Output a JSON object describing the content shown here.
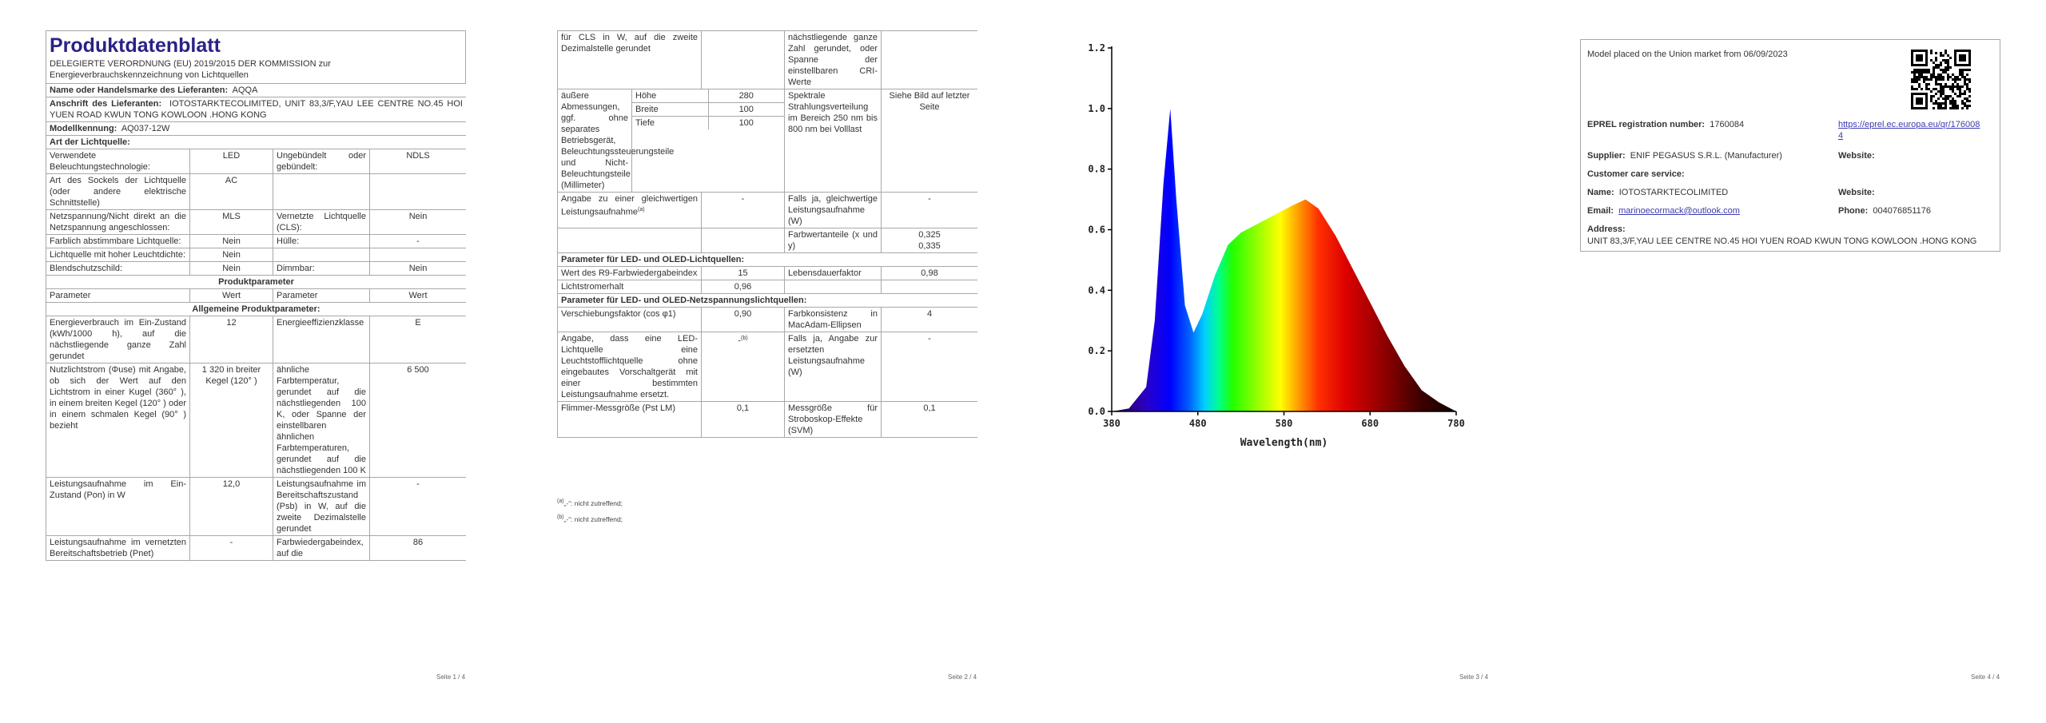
{
  "page1": {
    "title": "Produktdatenblatt",
    "subtitle": "DELEGIERTE VERORDNUNG (EU) 2019/2015 DER KOMMISSION zur Energieverbrauchskennzeichnung von Lichtquellen",
    "rows": [
      {
        "label": "Name oder Handelsmarke des Lieferanten:",
        "text": "AQQA"
      },
      {
        "label": "Anschrift des Lieferanten:",
        "text": "IOTOSTARKTECOLIMITED, UNIT 83,3/F,YAU LEE CENTRE NO.45 HOI YUEN ROAD KWUN TONG KOWLOON .HONG KONG"
      },
      {
        "label": "Modellkennung:",
        "text": "AQ037-12W"
      },
      {
        "heading": "Art der Lichtquelle:"
      },
      [
        "Verwendete Beleuchtungstechnologie:",
        "LED",
        "Ungebündelt oder gebündelt:",
        "NDLS"
      ],
      [
        "Art des Sockels der Lichtquelle (oder andere elektrische Schnittstelle)",
        "AC",
        null,
        null
      ],
      [
        "Netzspannung/Nicht direkt an die Netzspannung angeschlossen:",
        "MLS",
        "Vernetzte Lichtquelle (CLS):",
        "Nein"
      ],
      [
        "Farblich abstimmbare Lichtquelle:",
        "Nein",
        "Hülle:",
        "-"
      ],
      [
        "Lichtquelle mit hoher Leuchtdichte:",
        "Nein",
        null,
        null
      ],
      [
        "Blendschutzschild:",
        "Nein",
        "Dimmbar:",
        "Nein"
      ],
      {
        "heading": "Produktparameter",
        "center": true
      },
      [
        "Parameter",
        "Wert",
        "Parameter",
        "Wert"
      ],
      {
        "heading": "Allgemeine Produktparameter:",
        "center": true
      },
      [
        "Energieverbrauch im Ein-Zustand (kWh/1000 h), auf die nächstliegende ganze Zahl gerundet",
        "12",
        "Energieeffizienzklasse",
        "E"
      ],
      [
        "Nutzlichtstrom (Φuse) mit Angabe, ob sich der Wert auf den Lichtstrom in einer Kugel (360° ), in einem breiten Kegel (120° ) oder in einem schmalen Kegel (90° ) bezieht",
        "1 320 in breiter Kegel (120° )",
        "ähnliche Farbtemperatur, gerundet auf die nächstliegenden 100 K, oder Spanne der einstellbaren ähnlichen Farbtemperaturen, gerundet auf die nächstliegenden 100 K",
        "6 500"
      ],
      [
        "Leistungsaufnahme im Ein-Zustand (Pon) in W",
        "12,0",
        "Leistungsaufnahme im Bereitschaftszustand (Psb) in W, auf die zweite Dezimalstelle gerundet",
        "-"
      ],
      [
        "Leistungsaufnahme im vernetzten Bereitschaftsbetrieb (Pnet)",
        "-",
        "Farbwiedergabeindex, auf die",
        "86"
      ]
    ]
  },
  "page2": {
    "rows": [
      [
        "für CLS in W, auf die zweite Dezimalstelle gerundet",
        null,
        "nächstliegende ganze Zahl gerundet, oder Spanne der einstellbaren CRI-Werte",
        null
      ],
      {
        "label": "äußere Abmessungen, ggf. ohne separates Betriebsgerät, Beleuchtungssteuerungsteile und Nicht-Beleuchtungsteile (Millimeter)",
        "dims": [
          [
            "Höhe",
            "280"
          ],
          [
            "Breite",
            "100"
          ],
          [
            "Tiefe",
            "100"
          ]
        ],
        "label2": "Spektrale Strahlungsverteilung im Bereich 250 nm bis 800 nm bei Volllast",
        "value2": "Siehe Bild auf letzter Seite"
      },
      [
        {
          "text": "Angabe zu einer gleichwertigen Leistungsaufnahme",
          "sup": "(a)"
        },
        "-",
        "Falls ja, gleichwertige Leistungsaufnahme (W)",
        "-"
      ],
      [
        null,
        null,
        "Farbwertanteile (x und y)",
        [
          "0,325",
          "0,335"
        ]
      ],
      {
        "heading": "Parameter für LED- und OLED-Lichtquellen:"
      },
      [
        "Wert des R9-Farbwiedergabeindex",
        "15",
        "Lebensdauerfaktor",
        "0,98"
      ],
      [
        "Lichtstromerhalt",
        "0,96",
        null,
        null
      ],
      {
        "heading": "Parameter für LED- und OLED-Netzspannungslichtquellen:"
      },
      [
        "Verschiebungsfaktor (cos φ1)",
        "0,90",
        "Farbkonsistenz in MacAdam-Ellipsen",
        "4"
      ],
      [
        "Angabe, dass eine LED-Lichtquelle eine Leuchtstofflichtquelle ohne eingebautes Vorschaltgerät mit einer bestimmten Leistungsaufnahme ersetzt.",
        {
          "text": "-",
          "sup": "(b)"
        },
        "Falls ja, Angabe zur ersetzten Leistungsaufnahme (W)",
        "-"
      ],
      [
        "Flimmer-Messgröße (Pst LM)",
        "0,1",
        "Messgröße für Stroboskop-Effekte (SVM)",
        "0,1"
      ]
    ],
    "footnotes": [
      {
        "mark": "(a)",
        "text": "„-“: nicht zutreffend;"
      },
      {
        "mark": "(b)",
        "text": "„-“: nicht zutreffend;"
      }
    ]
  },
  "chart_data": {
    "type": "area",
    "x_label": "Wavelength(nm)",
    "x": [
      380,
      400,
      420,
      430,
      440,
      448,
      455,
      465,
      475,
      485,
      500,
      515,
      530,
      550,
      570,
      590,
      605,
      620,
      640,
      660,
      680,
      700,
      720,
      740,
      760,
      780
    ],
    "values": [
      0,
      0.01,
      0.08,
      0.3,
      0.75,
      1.0,
      0.7,
      0.35,
      0.26,
      0.32,
      0.45,
      0.55,
      0.59,
      0.62,
      0.65,
      0.68,
      0.7,
      0.67,
      0.58,
      0.47,
      0.36,
      0.25,
      0.15,
      0.07,
      0.03,
      0
    ],
    "xlim": [
      380,
      780
    ],
    "ylim": [
      0,
      1.2
    ],
    "xticks": [
      380,
      480,
      580,
      680,
      780
    ],
    "yticks": [
      {
        "value": 0,
        "label": "0.0"
      },
      0.2,
      0.4,
      0.6,
      0.8,
      {
        "value": 1,
        "label": "1.0"
      },
      1.2
    ]
  },
  "page4": {
    "market": "Model placed on the Union market from 06/09/2023",
    "eprel_label": "EPREL registration number:",
    "eprel_number": "1760084",
    "eprel_url": "https://eprel.ec.europa.eu/qr/1760084",
    "supplier_label": "Supplier:",
    "supplier": "ENIF PEGASUS S.R.L. (Manufacturer)",
    "website_label": "Website:",
    "customer_care": "Customer care service:",
    "name_label": "Name:",
    "name": "IOTOSTARKTECOLIMITED",
    "website_label_2": "Website:",
    "email_label": "Email:",
    "email": "marinoecormack@outlook.com",
    "phone_label": "Phone:",
    "phone": "004076851176",
    "address_label": "Address:",
    "address": "UNIT 83,3/F,YAU LEE CENTRE NO.45 HOI YUEN ROAD KWUN TONG KOWLOON .HONG KONG"
  },
  "page_numbers": [
    "Seite 1 / 4",
    "Seite 2 / 4",
    "Seite 3 / 4",
    "Seite 4 / 4"
  ]
}
